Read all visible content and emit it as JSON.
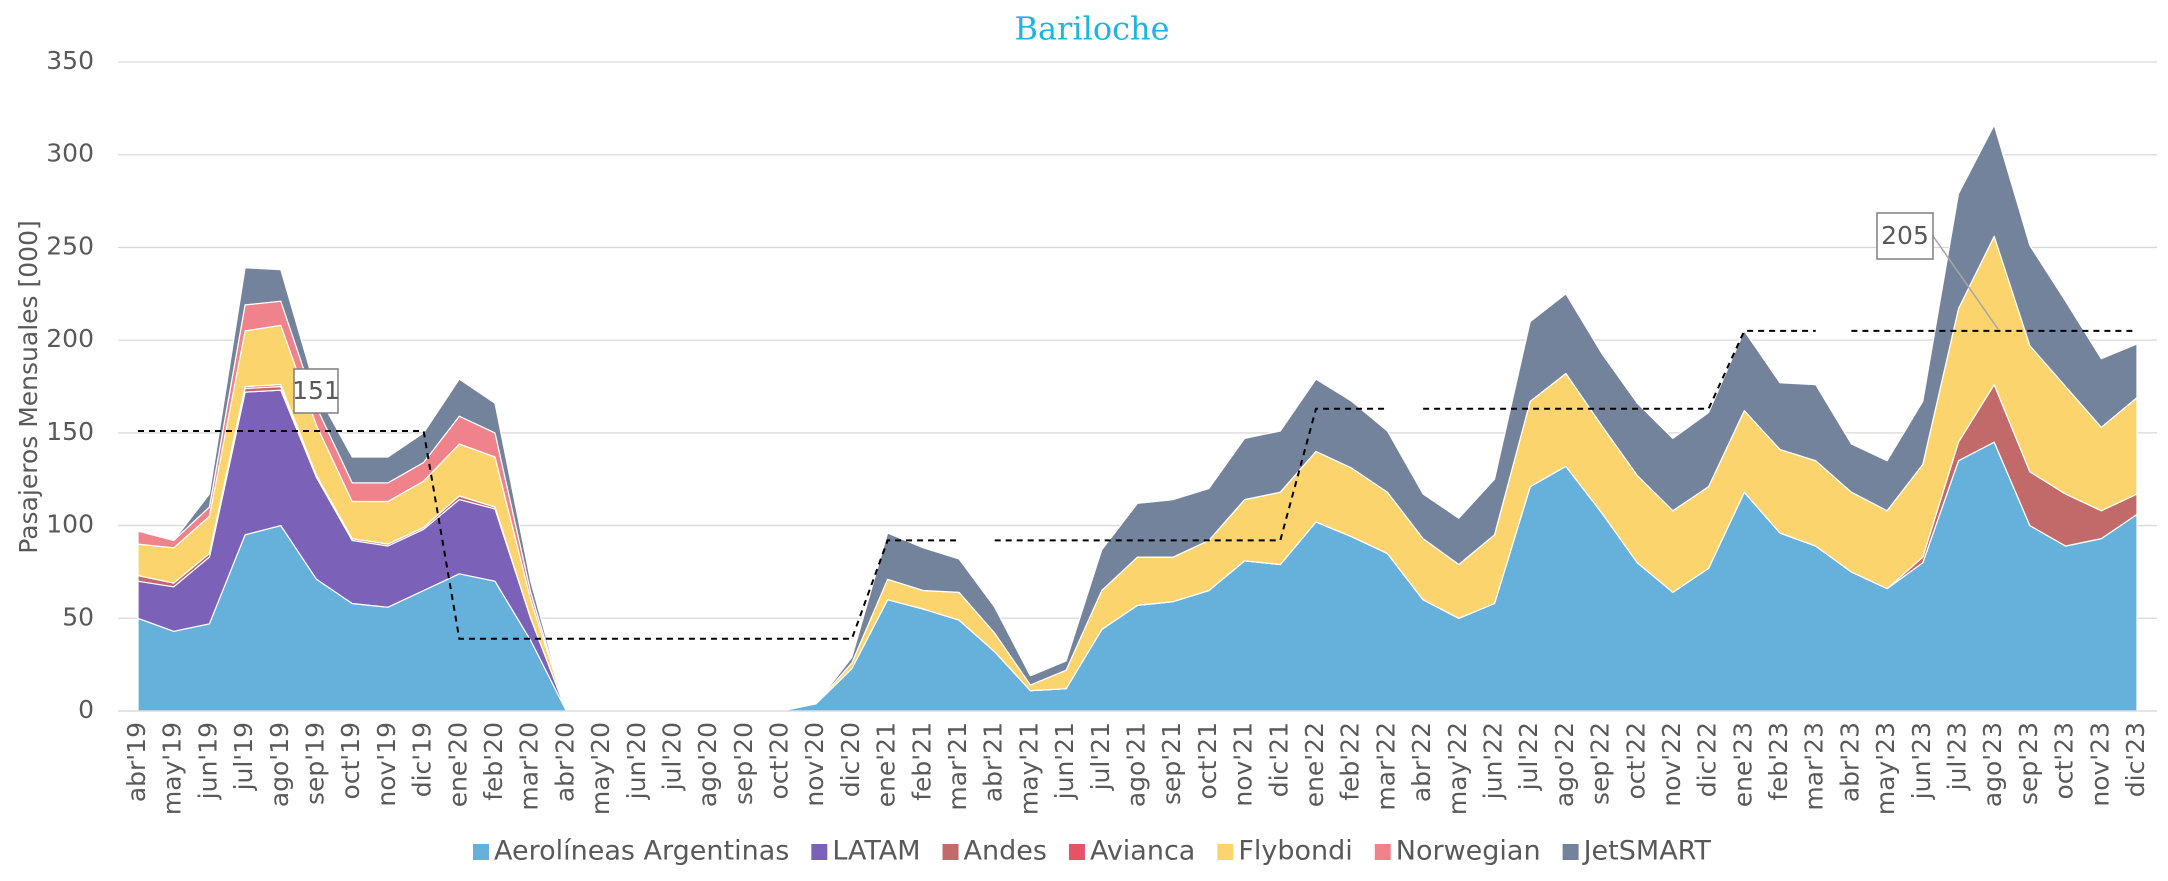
{
  "chart_data": {
    "type": "stacked_area",
    "title": "Bariloche",
    "y_label": "Pasajeros Mensuales [000]",
    "categories": [
      "abr'19",
      "may'19",
      "jun'19",
      "jul'19",
      "ago'19",
      "sep'19",
      "oct'19",
      "nov'19",
      "dic'19",
      "ene'20",
      "feb'20",
      "mar'20",
      "abr'20",
      "may'20",
      "jun'20",
      "jul'20",
      "ago'20",
      "sep'20",
      "oct'20",
      "nov'20",
      "dic'20",
      "ene'21",
      "feb'21",
      "mar'21",
      "abr'21",
      "may'21",
      "jun'21",
      "jul'21",
      "ago'21",
      "sep'21",
      "oct'21",
      "nov'21",
      "dic'21",
      "ene'22",
      "feb'22",
      "mar'22",
      "abr'22",
      "may'22",
      "jun'22",
      "jul'22",
      "ago'22",
      "sep'22",
      "oct'22",
      "nov'22",
      "dic'22",
      "ene'23",
      "feb'23",
      "mar'23",
      "abr'23",
      "may'23",
      "jun'23",
      "jul'23",
      "ago'23",
      "sep'23",
      "oct'23",
      "nov'23",
      "dic'23"
    ],
    "series": [
      {
        "name": "Aerolíneas Argentinas",
        "color": "#65b1dc",
        "values": [
          50,
          43,
          47,
          95,
          100,
          71,
          58,
          56,
          65,
          74,
          70,
          38,
          0,
          0,
          0,
          0,
          0,
          0,
          0,
          4,
          23,
          60,
          55,
          49,
          32,
          11,
          12,
          44,
          57,
          59,
          65,
          81,
          79,
          102,
          94,
          85,
          60,
          50,
          58,
          121,
          132,
          107,
          80,
          64,
          77,
          118,
          96,
          89,
          75,
          66,
          80,
          135,
          145,
          100,
          89,
          93,
          106
        ]
      },
      {
        "name": "LATAM",
        "color": "#7b62b8",
        "values": [
          20,
          24,
          36,
          77,
          73,
          55,
          34,
          33,
          33,
          40,
          39,
          12,
          0,
          0,
          0,
          0,
          0,
          0,
          0,
          0,
          0,
          0,
          0,
          0,
          0,
          0,
          0,
          0,
          0,
          0,
          0,
          0,
          0,
          0,
          0,
          0,
          0,
          0,
          0,
          0,
          0,
          0,
          0,
          0,
          0,
          0,
          0,
          0,
          0,
          0,
          0,
          0,
          0,
          0,
          0,
          0,
          0
        ]
      },
      {
        "name": "Andes",
        "color": "#c26a6a",
        "values": [
          3,
          2,
          2,
          2,
          2,
          1,
          1,
          1,
          1,
          2,
          1,
          0,
          0,
          0,
          0,
          0,
          0,
          0,
          0,
          0,
          0,
          0,
          0,
          0,
          0,
          0,
          0,
          0,
          0,
          0,
          0,
          0,
          0,
          0,
          0,
          0,
          0,
          0,
          0,
          0,
          0,
          0,
          0,
          0,
          0,
          0,
          0,
          0,
          0,
          0,
          3,
          10,
          31,
          29,
          28,
          15,
          11
        ]
      },
      {
        "name": "Avianca",
        "color": "#e45466",
        "values": [
          0,
          0,
          0,
          1,
          1,
          0,
          0,
          0,
          0,
          0,
          0,
          0,
          0,
          0,
          0,
          0,
          0,
          0,
          0,
          0,
          0,
          0,
          0,
          0,
          0,
          0,
          0,
          0,
          0,
          0,
          0,
          0,
          0,
          0,
          0,
          0,
          0,
          0,
          0,
          0,
          0,
          0,
          0,
          0,
          0,
          0,
          0,
          0,
          0,
          0,
          0,
          0,
          0,
          0,
          0,
          0,
          0
        ]
      },
      {
        "name": "Flybondi",
        "color": "#fcd46e",
        "values": [
          17,
          19,
          20,
          30,
          32,
          27,
          20,
          23,
          25,
          28,
          27,
          10,
          0,
          0,
          0,
          0,
          0,
          0,
          0,
          0,
          3,
          11,
          10,
          15,
          10,
          3,
          10,
          21,
          26,
          24,
          27,
          33,
          39,
          38,
          37,
          33,
          33,
          29,
          37,
          46,
          50,
          47,
          47,
          44,
          44,
          44,
          45,
          46,
          43,
          42,
          50,
          72,
          80,
          68,
          58,
          45,
          52
        ]
      },
      {
        "name": "Norwegian",
        "color": "#f0828c",
        "values": [
          7,
          4,
          5,
          14,
          13,
          10,
          10,
          10,
          10,
          15,
          13,
          4,
          0,
          0,
          0,
          0,
          0,
          0,
          0,
          0,
          0,
          0,
          0,
          0,
          0,
          0,
          0,
          0,
          0,
          0,
          0,
          0,
          0,
          0,
          0,
          0,
          0,
          0,
          0,
          0,
          0,
          0,
          0,
          0,
          0,
          0,
          0,
          0,
          0,
          0,
          0,
          0,
          0,
          0,
          0,
          0,
          0
        ]
      },
      {
        "name": "JetSMART",
        "color": "#74839c",
        "values": [
          0,
          0,
          7,
          20,
          17,
          8,
          14,
          14,
          16,
          20,
          16,
          6,
          0,
          0,
          0,
          0,
          0,
          0,
          0,
          0,
          3,
          25,
          23,
          18,
          14,
          5,
          5,
          22,
          29,
          31,
          28,
          33,
          33,
          39,
          36,
          33,
          24,
          25,
          30,
          43,
          43,
          39,
          39,
          39,
          40,
          43,
          36,
          41,
          26,
          27,
          34,
          62,
          60,
          54,
          46,
          37,
          29
        ]
      }
    ],
    "reference_lines": [
      {
        "from": "abr'19",
        "values": [
          151,
          151,
          151,
          151,
          151,
          151,
          151,
          151,
          151,
          39,
          39,
          39,
          39,
          39,
          39,
          39,
          39,
          39,
          39,
          39,
          39,
          92,
          92,
          92
        ]
      },
      {
        "from": "abr'21",
        "values": [
          92,
          92,
          92,
          92,
          92,
          92,
          92,
          92,
          92,
          163,
          163,
          163
        ]
      },
      {
        "from": "abr'22",
        "values": [
          163,
          163,
          163,
          163,
          163,
          163,
          163,
          163,
          163,
          205,
          205,
          205
        ]
      },
      {
        "from": "abr'23",
        "values": [
          205,
          205,
          205,
          205,
          205,
          205,
          205,
          205,
          205
        ]
      }
    ],
    "annotations": [
      "151",
      "205"
    ],
    "ylim": [
      0,
      350
    ],
    "yticks": [
      0,
      50,
      100,
      150,
      200,
      250,
      300,
      350
    ],
    "grid": true,
    "legend": "bottom"
  }
}
